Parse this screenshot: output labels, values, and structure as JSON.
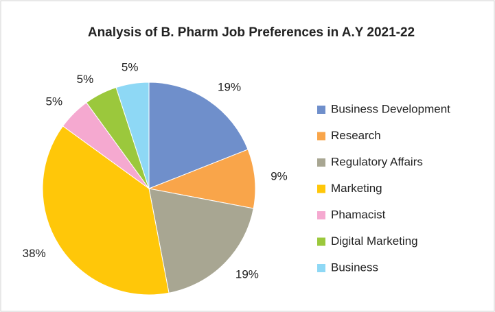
{
  "chart_data": {
    "type": "pie",
    "title": "Analysis of B. Pharm Job Preferences in A.Y 2021-22",
    "categories": [
      "Business Development",
      "Research",
      "Regulatory Affairs",
      "Marketing",
      "Phamacist",
      "Digital Marketing",
      "Business"
    ],
    "values": [
      19,
      9,
      19,
      38,
      5,
      5,
      5
    ],
    "value_labels": [
      "19%",
      "9%",
      "19%",
      "38%",
      "5%",
      "5%",
      "5%"
    ],
    "colors": [
      "#6f8fcb",
      "#f9a54a",
      "#a8a692",
      "#ffc709",
      "#f5a9d0",
      "#9bc83c",
      "#8ed8f5"
    ],
    "legend": "right"
  }
}
